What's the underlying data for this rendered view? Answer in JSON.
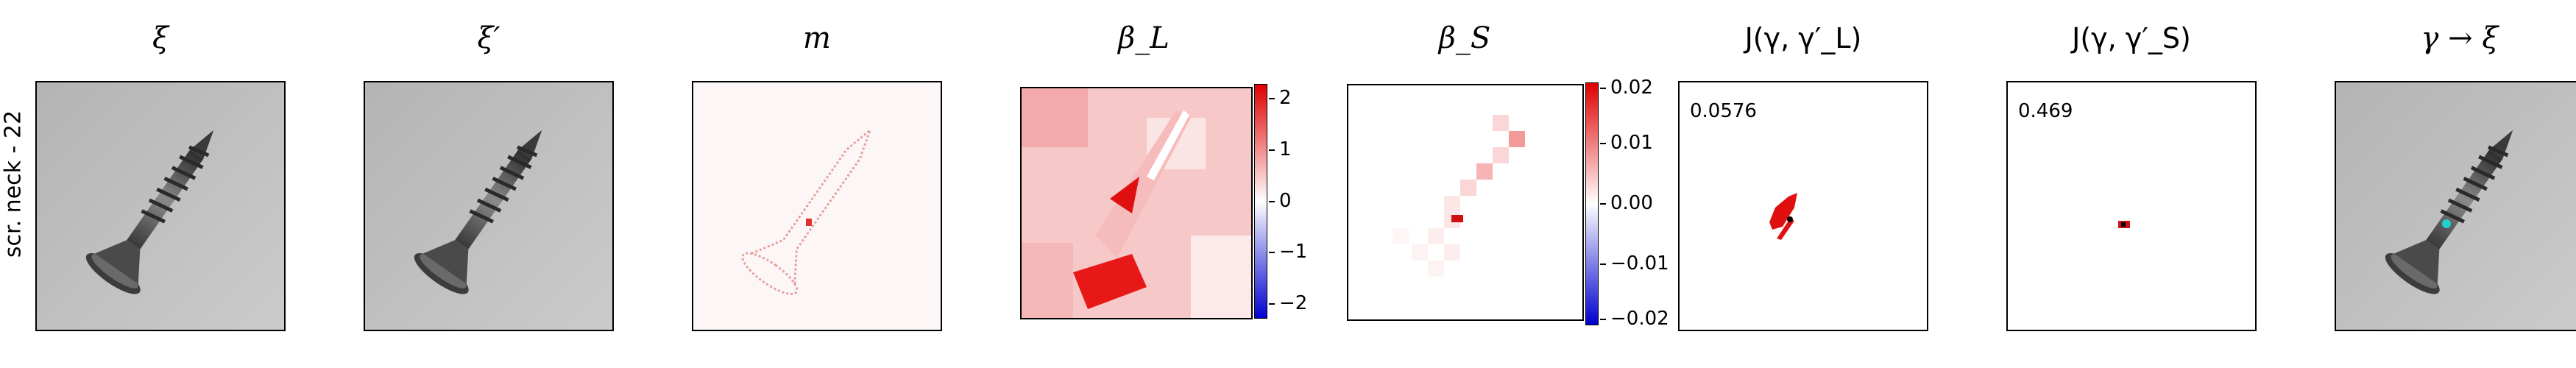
{
  "row_label": "scr. neck - 22",
  "panels": [
    {
      "title": "ξ"
    },
    {
      "title": "ξ′"
    },
    {
      "title": "m"
    },
    {
      "title": "β_L",
      "colorbar_ticks": [
        "2",
        "1",
        "0",
        "−1",
        "−2"
      ]
    },
    {
      "title": "β_S",
      "colorbar_ticks": [
        "0.02",
        "0.01",
        "0.00",
        "−0.01",
        "−0.02"
      ]
    },
    {
      "title": "J(γ, γ′_L)",
      "value": "0.0576"
    },
    {
      "title": "J(γ, γ′_S)",
      "value": "0.469"
    },
    {
      "title": "γ → ξ"
    }
  ],
  "colors": {
    "positive": "#e02020",
    "negative": "#1010c0",
    "highlight": "#20d0d0"
  }
}
